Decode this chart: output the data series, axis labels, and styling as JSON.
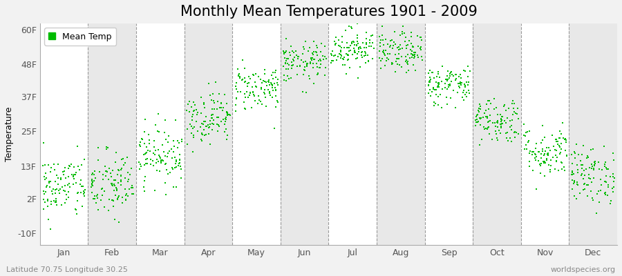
{
  "title": "Monthly Mean Temperatures 1901 - 2009",
  "ylabel": "Temperature",
  "subtitle": "Latitude 70.75 Longitude 30.25",
  "watermark": "worldspecies.org",
  "legend_label": "Mean Temp",
  "dot_color": "#00bb00",
  "dot_size": 3,
  "background_color": "#f2f2f2",
  "plot_bg_color": "#ffffff",
  "band_color_even": "#ffffff",
  "band_color_odd": "#e8e8e8",
  "ylim": [
    -14,
    62
  ],
  "yticks": [
    -10,
    2,
    13,
    25,
    37,
    48,
    60
  ],
  "ytick_labels": [
    "-10F",
    "2F",
    "13F",
    "25F",
    "37F",
    "48F",
    "60F"
  ],
  "months": [
    "Jan",
    "Feb",
    "Mar",
    "Apr",
    "May",
    "Jun",
    "Jul",
    "Aug",
    "Sep",
    "Oct",
    "Nov",
    "Dec"
  ],
  "monthly_means_f": [
    6.0,
    6.5,
    17.0,
    30.0,
    40.0,
    48.5,
    53.5,
    52.0,
    41.0,
    29.0,
    18.0,
    10.0
  ],
  "monthly_stds_f": [
    5.5,
    6.0,
    5.0,
    4.5,
    4.0,
    3.5,
    3.5,
    3.5,
    3.5,
    4.0,
    4.5,
    5.0
  ],
  "n_years": 109,
  "seed": 42,
  "title_fontsize": 15,
  "axis_label_fontsize": 9,
  "tick_fontsize": 9,
  "subtitle_fontsize": 8,
  "watermark_fontsize": 8
}
